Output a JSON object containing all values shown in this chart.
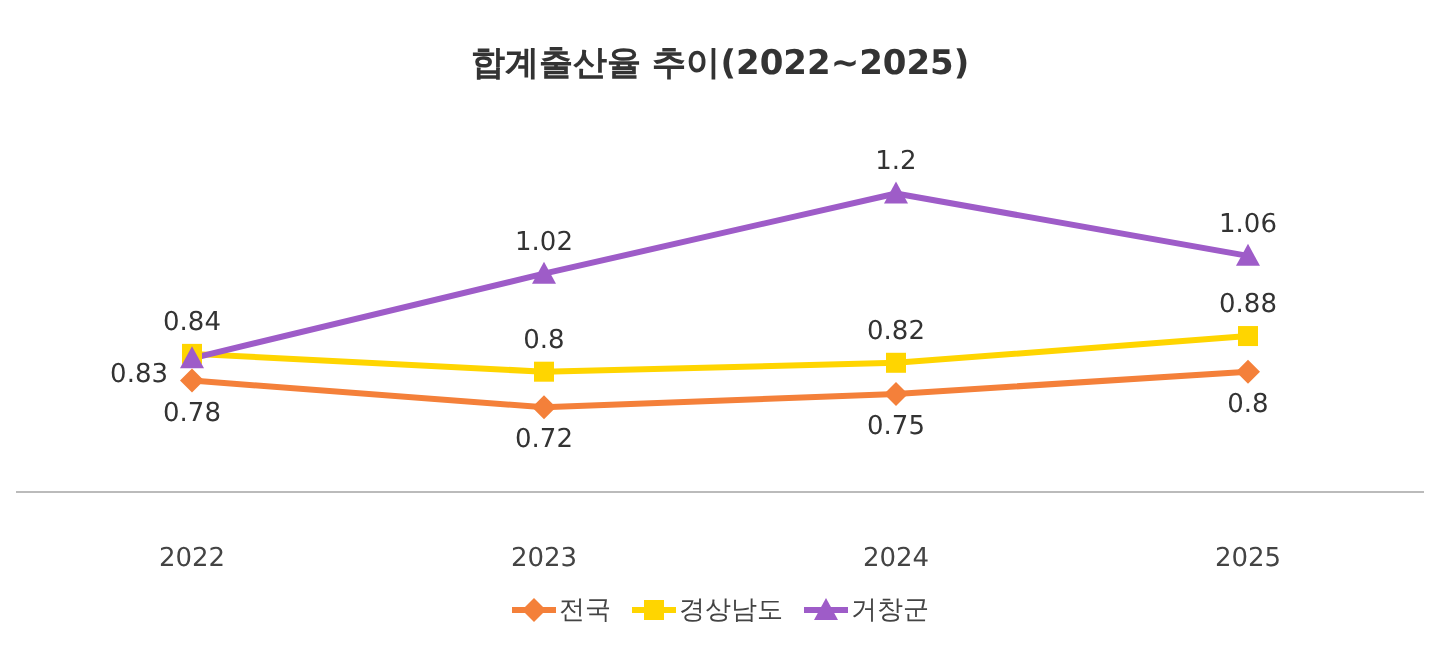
{
  "chart_data": {
    "type": "line",
    "title": "합계출산율 추이(2022~2025)",
    "categories": [
      "2022",
      "2023",
      "2024",
      "2025"
    ],
    "series": [
      {
        "name": "전국",
        "color": "#f4803a",
        "marker": "diamond",
        "values": [
          0.78,
          0.72,
          0.75,
          0.8
        ]
      },
      {
        "name": "경상남도",
        "color": "#ffd500",
        "marker": "square",
        "values": [
          0.84,
          0.8,
          0.82,
          0.88
        ]
      },
      {
        "name": "거창군",
        "color": "#9e5cc8",
        "marker": "triangle",
        "values": [
          0.83,
          1.02,
          1.2,
          1.06
        ]
      }
    ],
    "data_labels": true,
    "legend": "bottom",
    "grid": false
  }
}
